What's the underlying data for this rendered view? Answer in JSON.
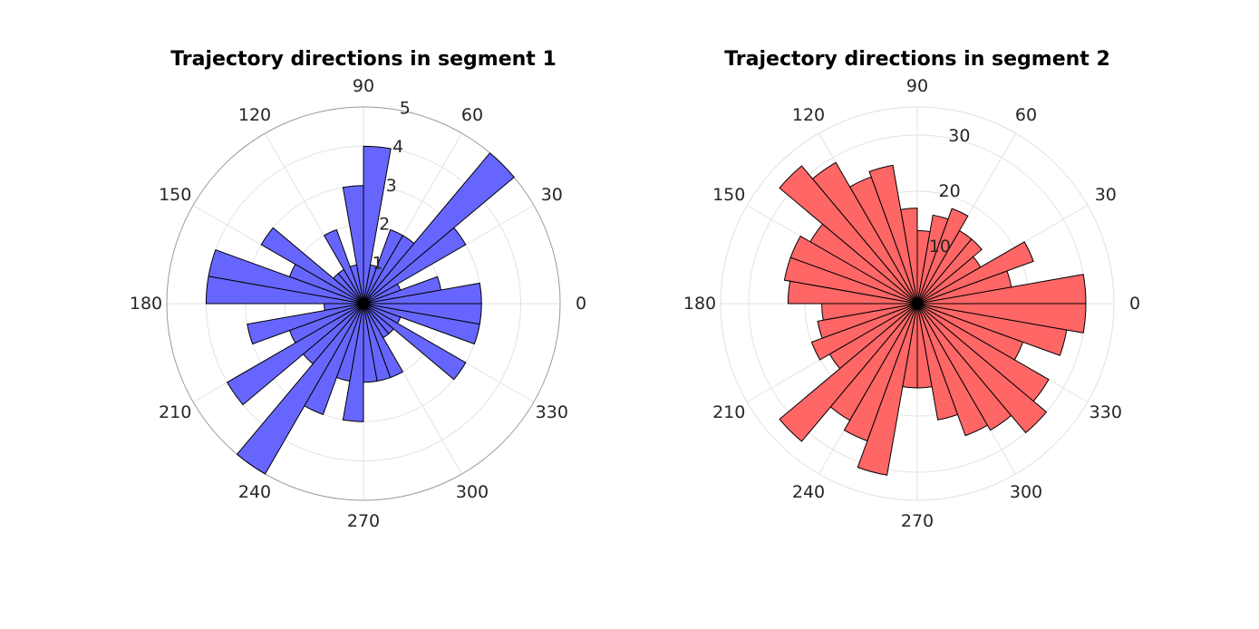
{
  "chart_data": [
    {
      "type": "polar-histogram",
      "title": "Trajectory directions in segment 1",
      "color": "#6666ff",
      "rlim": [
        0,
        5
      ],
      "r_ticks": [
        "1",
        "2",
        "3",
        "4",
        "5"
      ],
      "theta_ticks": [
        "0",
        "30",
        "60",
        "90",
        "120",
        "150",
        "180",
        "210",
        "240",
        "270",
        "300",
        "330"
      ],
      "bin_width_deg": 10,
      "bin_centers_deg": [
        5,
        15,
        25,
        35,
        45,
        55,
        65,
        75,
        85,
        95,
        105,
        115,
        125,
        135,
        145,
        155,
        165,
        175,
        185,
        195,
        205,
        215,
        225,
        235,
        245,
        255,
        265,
        275,
        285,
        295,
        305,
        315,
        325,
        335,
        345,
        355
      ],
      "values": [
        3,
        2,
        1,
        3,
        5,
        2,
        2,
        1,
        4,
        3,
        1,
        2,
        1,
        1,
        3,
        2,
        4,
        4,
        1,
        3,
        2,
        4,
        2,
        5,
        3,
        2,
        3,
        2,
        2,
        2,
        1,
        1,
        3,
        1,
        3,
        3
      ]
    },
    {
      "type": "polar-histogram",
      "title": "Trajectory directions in segment 2",
      "color": "#ff6666",
      "rlim": [
        0,
        35
      ],
      "r_ticks": [
        "10",
        "20",
        "30"
      ],
      "theta_ticks": [
        "0",
        "30",
        "60",
        "90",
        "120",
        "150",
        "180",
        "210",
        "240",
        "270",
        "300",
        "330"
      ],
      "bin_width_deg": 10,
      "bin_centers_deg": [
        5,
        15,
        25,
        35,
        45,
        55,
        65,
        75,
        85,
        95,
        105,
        115,
        125,
        135,
        145,
        155,
        165,
        175,
        185,
        195,
        205,
        215,
        225,
        235,
        245,
        255,
        265,
        275,
        285,
        295,
        305,
        315,
        325,
        335,
        345,
        355
      ],
      "values": [
        30,
        17,
        22,
        13,
        15,
        15,
        18,
        16,
        13,
        17,
        25,
        24,
        29,
        32,
        22,
        24,
        24,
        23,
        17,
        18,
        20,
        18,
        32,
        24,
        26,
        31,
        15,
        15,
        21,
        25,
        26,
        30,
        27,
        20,
        27,
        30
      ]
    }
  ]
}
